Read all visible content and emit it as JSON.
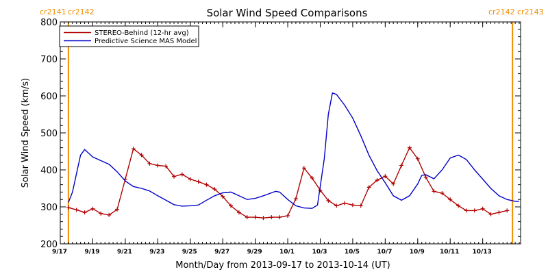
{
  "chart_data": {
    "type": "line",
    "title": "Solar Wind Speed Comparisons",
    "xlabel": "Month/Day from 2013-09-17 to 2013-10-14 (UT)",
    "ylabel": "Solar Wind Speed (km/s)",
    "ylim": [
      200,
      800
    ],
    "xlim": [
      "2013-09-17",
      "2013-10-14"
    ],
    "y_ticks": [
      "200",
      "300",
      "400",
      "500",
      "600",
      "700",
      "800"
    ],
    "x_ticks": [
      {
        "label": "9/17",
        "date": "2013-09-17"
      },
      {
        "label": "9/19",
        "date": "2013-09-19"
      },
      {
        "label": "9/21",
        "date": "2013-09-21"
      },
      {
        "label": "9/23",
        "date": "2013-09-23"
      },
      {
        "label": "9/25",
        "date": "2013-09-25"
      },
      {
        "label": "9/27",
        "date": "2013-09-27"
      },
      {
        "label": "9/29",
        "date": "2013-09-29"
      },
      {
        "label": "10/1",
        "date": "2013-10-01"
      },
      {
        "label": "10/3",
        "date": "2013-10-03"
      },
      {
        "label": "10/5",
        "date": "2013-10-05"
      },
      {
        "label": "10/7",
        "date": "2013-10-07"
      },
      {
        "label": "10/9",
        "date": "2013-10-09"
      },
      {
        "label": "10/11",
        "date": "2013-10-11"
      },
      {
        "label": "10/13",
        "date": "2013-10-13"
      }
    ],
    "legend": {
      "placement": "top-left"
    },
    "carrington_boundaries": [
      {
        "date": "2013-09-17 12:00",
        "left_label": "cr2141",
        "right_label": "cr2142",
        "label_side": "top-left"
      },
      {
        "date": "2013-10-14 20:00",
        "left_label": "cr2142",
        "right_label": "cr2143",
        "label_side": "top-right"
      }
    ],
    "series": [
      {
        "name": "STEREO-Behind (12-hr avg)",
        "color": "#b00000",
        "markers": true,
        "points": [
          [
            "2013-09-17 12:00",
            298
          ],
          [
            "2013-09-18 00:00",
            292
          ],
          [
            "2013-09-18 12:00",
            285
          ],
          [
            "2013-09-19 00:00",
            295
          ],
          [
            "2013-09-19 12:00",
            282
          ],
          [
            "2013-09-20 00:00",
            278
          ],
          [
            "2013-09-20 12:00",
            293
          ],
          [
            "2013-09-21 00:00",
            375
          ],
          [
            "2013-09-21 12:00",
            457
          ],
          [
            "2013-09-22 00:00",
            440
          ],
          [
            "2013-09-22 12:00",
            417
          ],
          [
            "2013-09-23 00:00",
            412
          ],
          [
            "2013-09-23 12:00",
            410
          ],
          [
            "2013-09-24 00:00",
            382
          ],
          [
            "2013-09-24 12:00",
            388
          ],
          [
            "2013-09-25 00:00",
            375
          ],
          [
            "2013-09-25 12:00",
            368
          ],
          [
            "2013-09-26 00:00",
            360
          ],
          [
            "2013-09-26 12:00",
            348
          ],
          [
            "2013-09-27 00:00",
            328
          ],
          [
            "2013-09-27 12:00",
            303
          ],
          [
            "2013-09-28 00:00",
            285
          ],
          [
            "2013-09-28 12:00",
            272
          ],
          [
            "2013-09-29 00:00",
            272
          ],
          [
            "2013-09-29 12:00",
            270
          ],
          [
            "2013-09-30 00:00",
            272
          ],
          [
            "2013-09-30 12:00",
            272
          ],
          [
            "2013-10-01 00:00",
            276
          ],
          [
            "2013-10-01 12:00",
            322
          ],
          [
            "2013-10-02 00:00",
            405
          ],
          [
            "2013-10-02 12:00",
            378
          ],
          [
            "2013-10-03 00:00",
            345
          ],
          [
            "2013-10-03 12:00",
            317
          ],
          [
            "2013-10-04 00:00",
            303
          ],
          [
            "2013-10-04 12:00",
            310
          ],
          [
            "2013-10-05 00:00",
            305
          ],
          [
            "2013-10-05 12:00",
            303
          ],
          [
            "2013-10-06 00:00",
            353
          ],
          [
            "2013-10-06 12:00",
            372
          ],
          [
            "2013-10-07 00:00",
            383
          ],
          [
            "2013-10-07 12:00",
            362
          ],
          [
            "2013-10-08 00:00",
            412
          ],
          [
            "2013-10-08 12:00",
            460
          ],
          [
            "2013-10-09 00:00",
            430
          ],
          [
            "2013-10-09 12:00",
            380
          ],
          [
            "2013-10-10 00:00",
            342
          ],
          [
            "2013-10-10 12:00",
            337
          ],
          [
            "2013-10-11 00:00",
            320
          ],
          [
            "2013-10-11 12:00",
            303
          ],
          [
            "2013-10-12 00:00",
            290
          ],
          [
            "2013-10-12 12:00",
            290
          ],
          [
            "2013-10-13 00:00",
            295
          ],
          [
            "2013-10-13 12:00",
            280
          ],
          [
            "2013-10-14 00:00",
            285
          ],
          [
            "2013-10-14 12:00",
            290
          ]
        ]
      },
      {
        "name": "Predictive Science MAS Model",
        "color": "#0000c8",
        "markers": false,
        "points": [
          [
            "2013-09-17 12:00",
            312
          ],
          [
            "2013-09-17 18:00",
            340
          ],
          [
            "2013-09-18 06:00",
            440
          ],
          [
            "2013-09-18 12:00",
            455
          ],
          [
            "2013-09-19 00:00",
            435
          ],
          [
            "2013-09-19 12:00",
            425
          ],
          [
            "2013-09-20 00:00",
            415
          ],
          [
            "2013-09-20 12:00",
            395
          ],
          [
            "2013-09-21 00:00",
            370
          ],
          [
            "2013-09-21 12:00",
            355
          ],
          [
            "2013-09-22 00:00",
            350
          ],
          [
            "2013-09-22 12:00",
            343
          ],
          [
            "2013-09-23 00:00",
            330
          ],
          [
            "2013-09-23 12:00",
            318
          ],
          [
            "2013-09-24 00:00",
            306
          ],
          [
            "2013-09-24 12:00",
            302
          ],
          [
            "2013-09-25 00:00",
            303
          ],
          [
            "2013-09-25 12:00",
            305
          ],
          [
            "2013-09-26 00:00",
            318
          ],
          [
            "2013-09-26 12:00",
            330
          ],
          [
            "2013-09-27 00:00",
            338
          ],
          [
            "2013-09-27 12:00",
            340
          ],
          [
            "2013-09-28 00:00",
            330
          ],
          [
            "2013-09-28 12:00",
            320
          ],
          [
            "2013-09-29 00:00",
            323
          ],
          [
            "2013-09-29 12:00",
            330
          ],
          [
            "2013-09-30 00:00",
            338
          ],
          [
            "2013-09-30 06:00",
            342
          ],
          [
            "2013-09-30 12:00",
            340
          ],
          [
            "2013-10-01 00:00",
            320
          ],
          [
            "2013-10-01 12:00",
            303
          ],
          [
            "2013-10-02 00:00",
            297
          ],
          [
            "2013-10-02 12:00",
            296
          ],
          [
            "2013-10-02 20:00",
            305
          ],
          [
            "2013-10-03 06:00",
            430
          ],
          [
            "2013-10-03 12:00",
            550
          ],
          [
            "2013-10-03 18:00",
            608
          ],
          [
            "2013-10-04 00:00",
            604
          ],
          [
            "2013-10-04 12:00",
            575
          ],
          [
            "2013-10-05 00:00",
            540
          ],
          [
            "2013-10-05 12:00",
            492
          ],
          [
            "2013-10-06 00:00",
            440
          ],
          [
            "2013-10-06 12:00",
            398
          ],
          [
            "2013-10-07 00:00",
            365
          ],
          [
            "2013-10-07 12:00",
            330
          ],
          [
            "2013-10-08 00:00",
            318
          ],
          [
            "2013-10-08 12:00",
            330
          ],
          [
            "2013-10-09 00:00",
            362
          ],
          [
            "2013-10-09 06:00",
            385
          ],
          [
            "2013-10-09 12:00",
            387
          ],
          [
            "2013-10-10 00:00",
            376
          ],
          [
            "2013-10-10 12:00",
            400
          ],
          [
            "2013-10-11 00:00",
            432
          ],
          [
            "2013-10-11 12:00",
            440
          ],
          [
            "2013-10-12 00:00",
            428
          ],
          [
            "2013-10-12 12:00",
            400
          ],
          [
            "2013-10-13 00:00",
            375
          ],
          [
            "2013-10-13 12:00",
            350
          ],
          [
            "2013-10-14 00:00",
            330
          ],
          [
            "2013-10-14 12:00",
            320
          ],
          [
            "2013-10-15 00:00",
            315
          ],
          [
            "2013-10-15 06:00",
            315
          ]
        ]
      }
    ]
  }
}
